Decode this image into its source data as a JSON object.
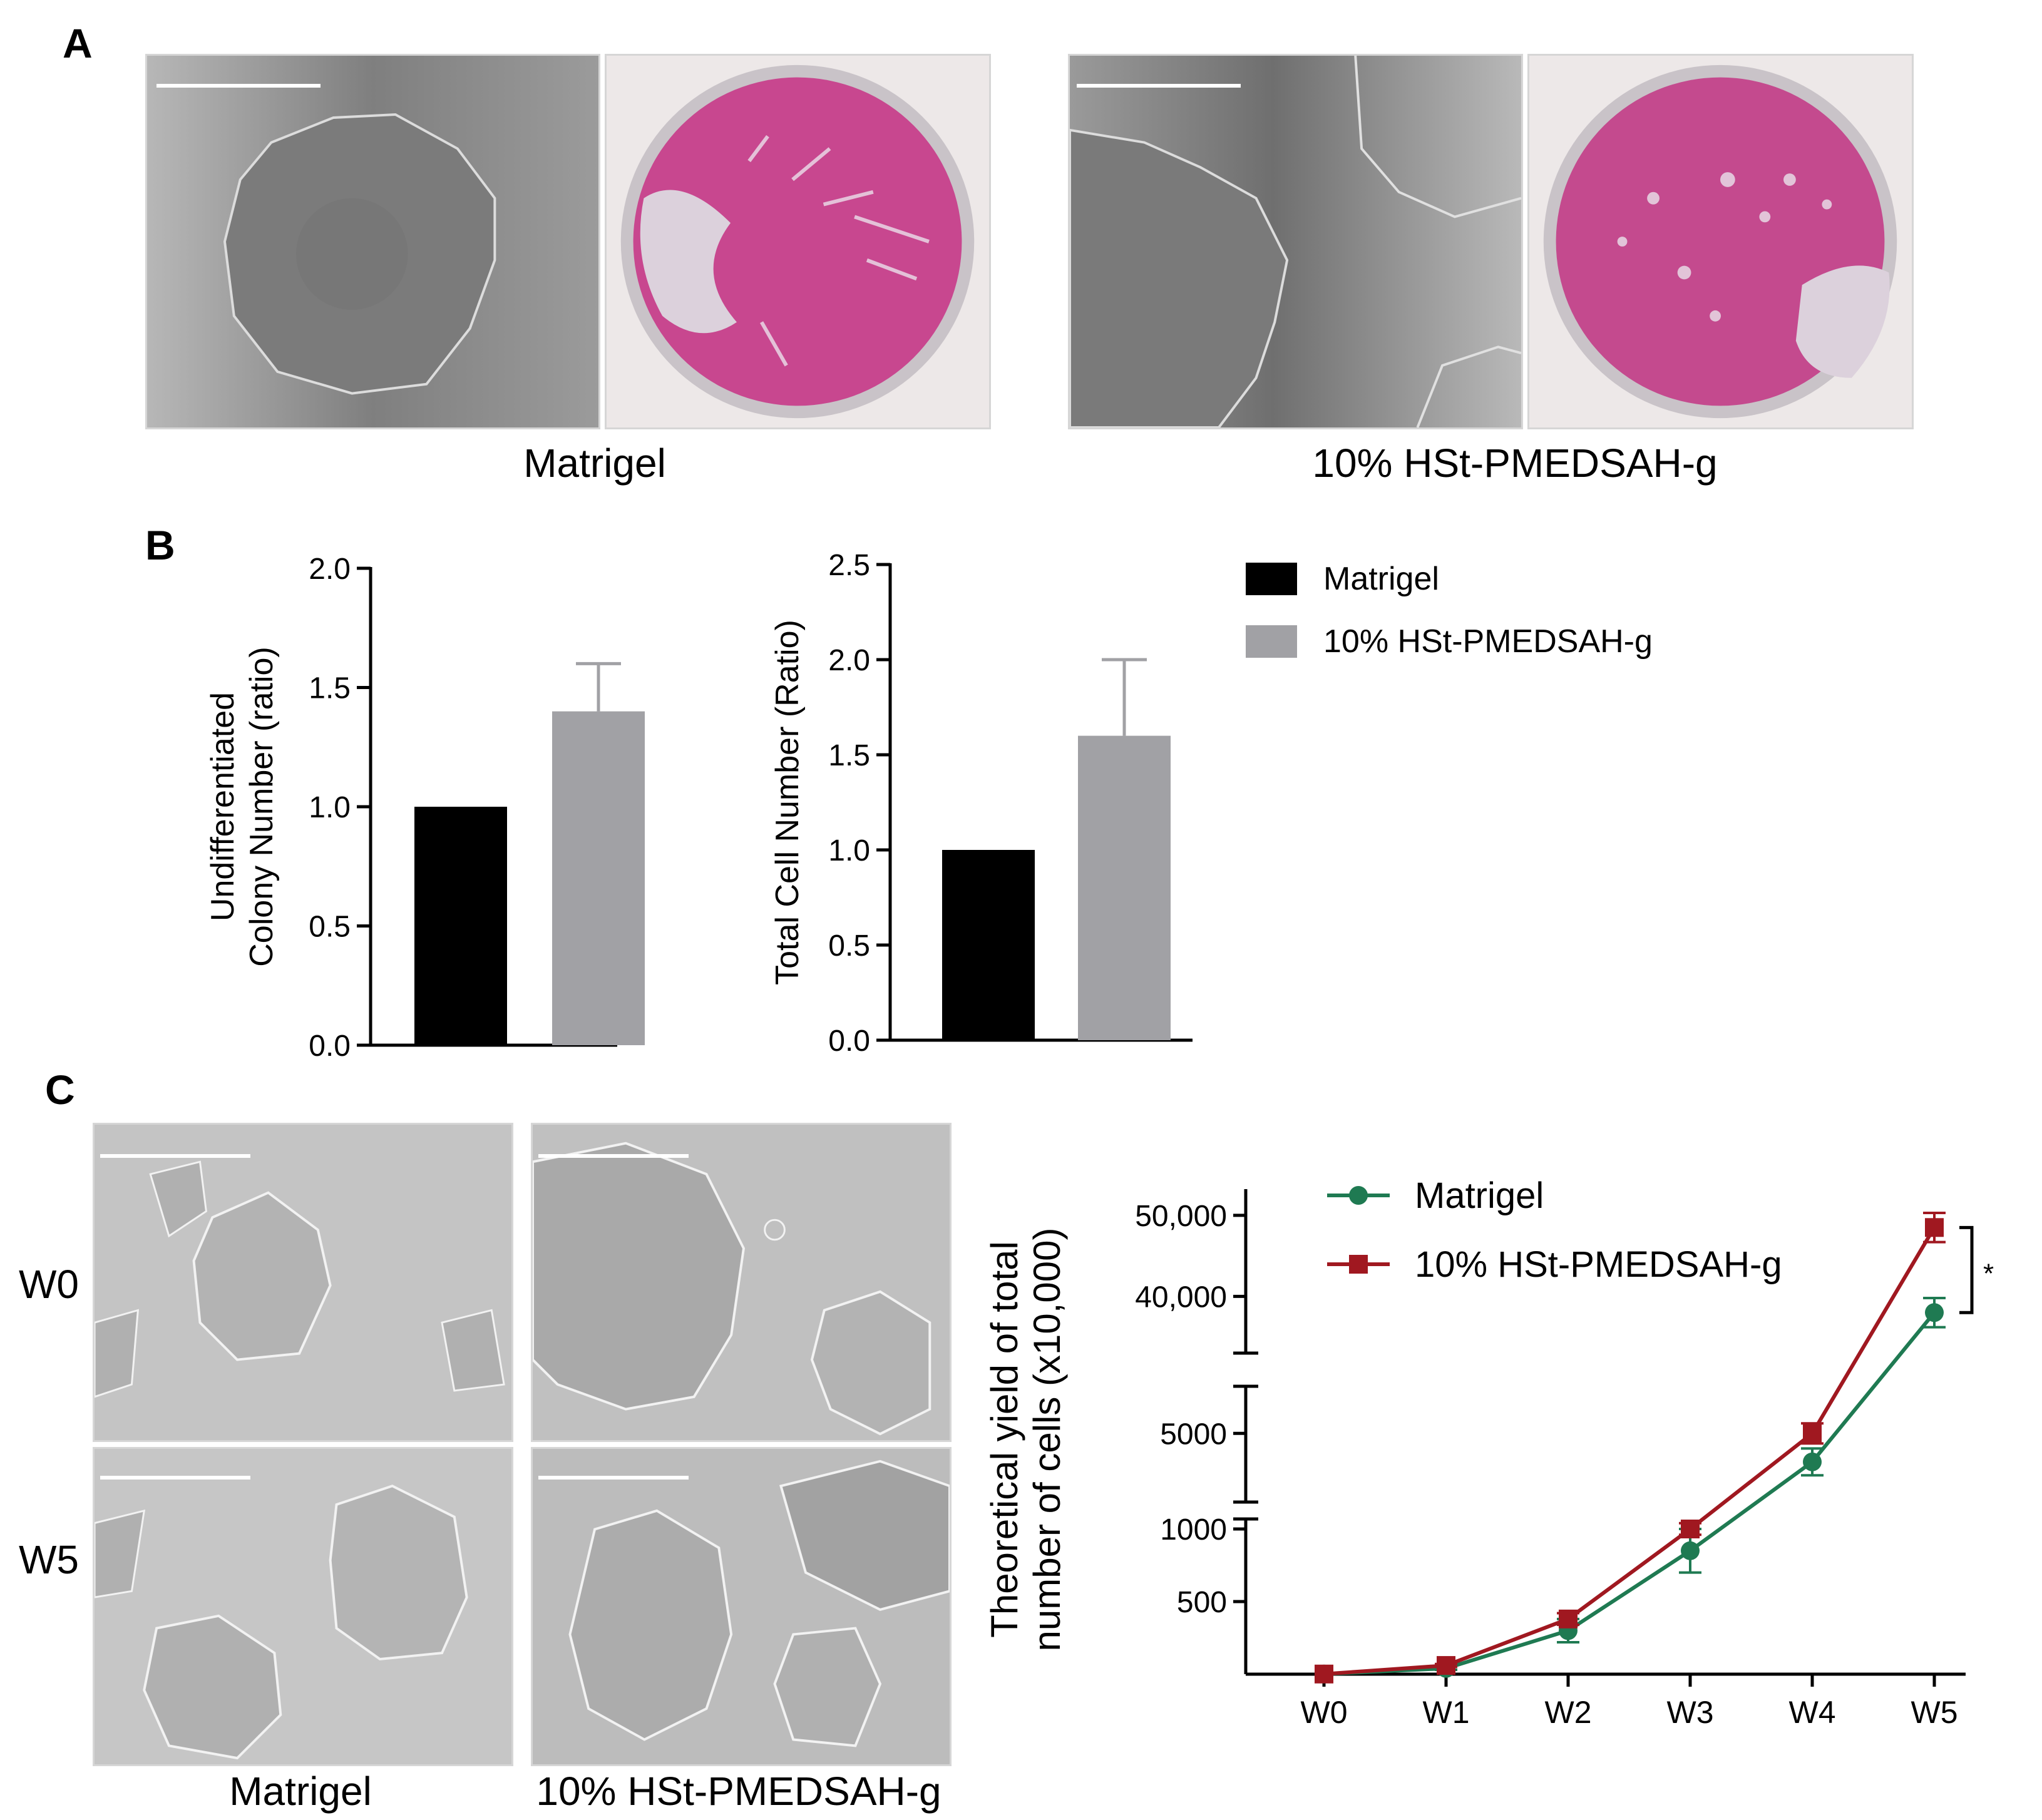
{
  "figure": {
    "panel_a": {
      "label": "A",
      "captions": [
        "Matrigel",
        "10% HSt-PMEDSAH-g"
      ]
    },
    "panel_b": {
      "label": "B",
      "legend": [
        {
          "label": "Matrigel",
          "color": "#000000"
        },
        {
          "label": "10% HSt-PMEDSAH-g",
          "color": "#a1a1a5"
        }
      ]
    },
    "panel_c": {
      "label": "C",
      "row_labels": [
        "W0",
        "W5"
      ],
      "captions": [
        "Matrigel",
        "10% HSt-PMEDSAH-g"
      ],
      "significance": "*"
    }
  },
  "chart_data": [
    {
      "type": "bar",
      "id": "colony",
      "categories": [
        "Matrigel",
        "10% HSt-PMEDSAH-g"
      ],
      "values": [
        1.0,
        1.4
      ],
      "errors": [
        0,
        0.2
      ],
      "colors": [
        "#000000",
        "#a1a1a5"
      ],
      "ylabel_lines": [
        "Undifferentiated",
        "Colony Number (ratio)"
      ],
      "ylim": [
        0,
        2.0
      ],
      "yticks": [
        0.0,
        0.5,
        1.0,
        1.5,
        2.0
      ],
      "ytick_labels": [
        "0.0",
        "0.5",
        "1.0",
        "1.5",
        "2.0"
      ]
    },
    {
      "type": "bar",
      "id": "total",
      "categories": [
        "Matrigel",
        "10% HSt-PMEDSAH-g"
      ],
      "values": [
        1.0,
        1.6
      ],
      "errors": [
        0,
        0.4
      ],
      "colors": [
        "#000000",
        "#a1a1a5"
      ],
      "ylabel_lines": [
        "Total Cell Number (Ratio)"
      ],
      "ylim": [
        0,
        2.5
      ],
      "yticks": [
        0.0,
        0.5,
        1.0,
        1.5,
        2.0,
        2.5
      ],
      "ytick_labels": [
        "0.0",
        "0.5",
        "1.0",
        "1.5",
        "2.0",
        "2.5"
      ]
    },
    {
      "type": "line",
      "id": "yield",
      "x": [
        "W0",
        "W1",
        "W2",
        "W3",
        "W4",
        "W5"
      ],
      "ylabel_lines": [
        "Theoretical yield of total",
        "number of cells (x10,000)"
      ],
      "y_segments": [
        {
          "range": [
            0,
            1000
          ],
          "ticks": [
            500,
            1000
          ],
          "tick_labels": [
            "500",
            "1000"
          ]
        },
        {
          "range": [
            1500,
            8000
          ],
          "ticks": [
            5000
          ],
          "tick_labels": [
            "5000"
          ]
        },
        {
          "range": [
            33000,
            52000
          ],
          "ticks": [
            40000,
            50000
          ],
          "tick_labels": [
            "40,000",
            "50,000"
          ]
        }
      ],
      "series": [
        {
          "name": "Matrigel",
          "color": "#1f7a52",
          "marker": "circle",
          "values": [
            1,
            40,
            300,
            850,
            3300,
            38000
          ],
          "errors": [
            0,
            10,
            80,
            150,
            800,
            1800
          ]
        },
        {
          "name": "10% HSt-PMEDSAH-g",
          "color": "#a01820",
          "marker": "square",
          "values": [
            1,
            60,
            380,
            1000,
            5000,
            48500
          ],
          "errors": [
            0,
            10,
            40,
            40,
            600,
            1800
          ]
        }
      ]
    }
  ]
}
